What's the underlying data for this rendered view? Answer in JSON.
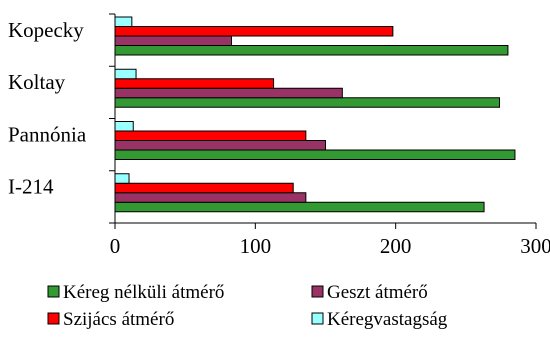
{
  "chart_data": {
    "type": "bar",
    "orientation": "horizontal",
    "categories": [
      "I-214",
      "Pannónia",
      "Koltay",
      "Kopecky"
    ],
    "series": [
      {
        "name": "Kéreg nélküli átmérő",
        "color": "#339933",
        "values": [
          263,
          285,
          274,
          280
        ]
      },
      {
        "name": "Geszt átmérő",
        "color": "#993366",
        "values": [
          136,
          150,
          162,
          83
        ]
      },
      {
        "name": "Szijács átmérő",
        "color": "#ff0000",
        "values": [
          127,
          136,
          113,
          198
        ]
      },
      {
        "name": "Kéregvastagság",
        "color": "#99ffff",
        "values": [
          10,
          13,
          15,
          12
        ]
      }
    ],
    "xlim": [
      0,
      300
    ],
    "xticks": [
      "0",
      "100",
      "200",
      "300"
    ],
    "grid": false,
    "legend_position": "bottom"
  }
}
